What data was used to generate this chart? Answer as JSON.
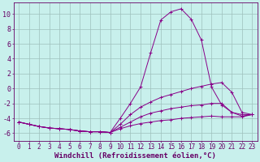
{
  "background_color": "#c8f0ec",
  "grid_color": "#9ec0bc",
  "line_color": "#880088",
  "xlabel": "Windchill (Refroidissement éolien,°C)",
  "xlabel_fontsize": 6.5,
  "xtick_fontsize": 5.5,
  "ytick_fontsize": 6,
  "xlim": [
    -0.5,
    23.5
  ],
  "ylim": [
    -7,
    11.5
  ],
  "yticks": [
    -6,
    -4,
    -2,
    0,
    2,
    4,
    6,
    8,
    10
  ],
  "xticks": [
    0,
    1,
    2,
    3,
    4,
    5,
    6,
    7,
    8,
    9,
    10,
    11,
    12,
    13,
    14,
    15,
    16,
    17,
    18,
    19,
    20,
    21,
    22,
    23
  ],
  "series": [
    {
      "x": [
        0,
        1,
        2,
        3,
        4,
        5,
        6,
        7,
        8,
        9,
        10,
        11,
        12,
        13,
        14,
        15,
        16,
        17,
        18,
        19,
        20,
        21,
        22,
        23
      ],
      "y": [
        -4.5,
        -4.8,
        -5.1,
        -5.3,
        -5.4,
        -5.5,
        -5.7,
        -5.8,
        -5.8,
        -5.9,
        -4.0,
        -2.0,
        0.2,
        4.8,
        9.2,
        10.3,
        10.7,
        9.3,
        6.5,
        0.2,
        -2.2,
        -3.2,
        -3.5,
        -3.5
      ]
    },
    {
      "x": [
        0,
        1,
        2,
        3,
        4,
        5,
        6,
        7,
        8,
        9,
        10,
        11,
        12,
        13,
        14,
        15,
        16,
        17,
        18,
        19,
        20,
        21,
        22,
        23
      ],
      "y": [
        -4.5,
        -4.8,
        -5.1,
        -5.3,
        -5.4,
        -5.5,
        -5.7,
        -5.8,
        -5.8,
        -5.9,
        -4.8,
        -3.5,
        -2.5,
        -1.8,
        -1.2,
        -0.8,
        -0.4,
        0.0,
        0.3,
        0.6,
        0.8,
        -0.5,
        -3.2,
        -3.5
      ]
    },
    {
      "x": [
        0,
        1,
        2,
        3,
        4,
        5,
        6,
        7,
        8,
        9,
        10,
        11,
        12,
        13,
        14,
        15,
        16,
        17,
        18,
        19,
        20,
        21,
        22,
        23
      ],
      "y": [
        -4.5,
        -4.8,
        -5.1,
        -5.3,
        -5.4,
        -5.5,
        -5.7,
        -5.8,
        -5.8,
        -5.9,
        -5.2,
        -4.5,
        -3.8,
        -3.3,
        -3.0,
        -2.7,
        -2.5,
        -2.3,
        -2.2,
        -2.0,
        -2.0,
        -3.2,
        -3.7,
        -3.5
      ]
    },
    {
      "x": [
        0,
        1,
        2,
        3,
        4,
        5,
        6,
        7,
        8,
        9,
        10,
        11,
        12,
        13,
        14,
        15,
        16,
        17,
        18,
        19,
        20,
        21,
        22,
        23
      ],
      "y": [
        -4.5,
        -4.8,
        -5.1,
        -5.3,
        -5.4,
        -5.5,
        -5.7,
        -5.8,
        -5.8,
        -5.9,
        -5.4,
        -5.0,
        -4.7,
        -4.5,
        -4.3,
        -4.2,
        -4.0,
        -3.9,
        -3.8,
        -3.7,
        -3.8,
        -3.8,
        -3.8,
        -3.5
      ]
    }
  ]
}
